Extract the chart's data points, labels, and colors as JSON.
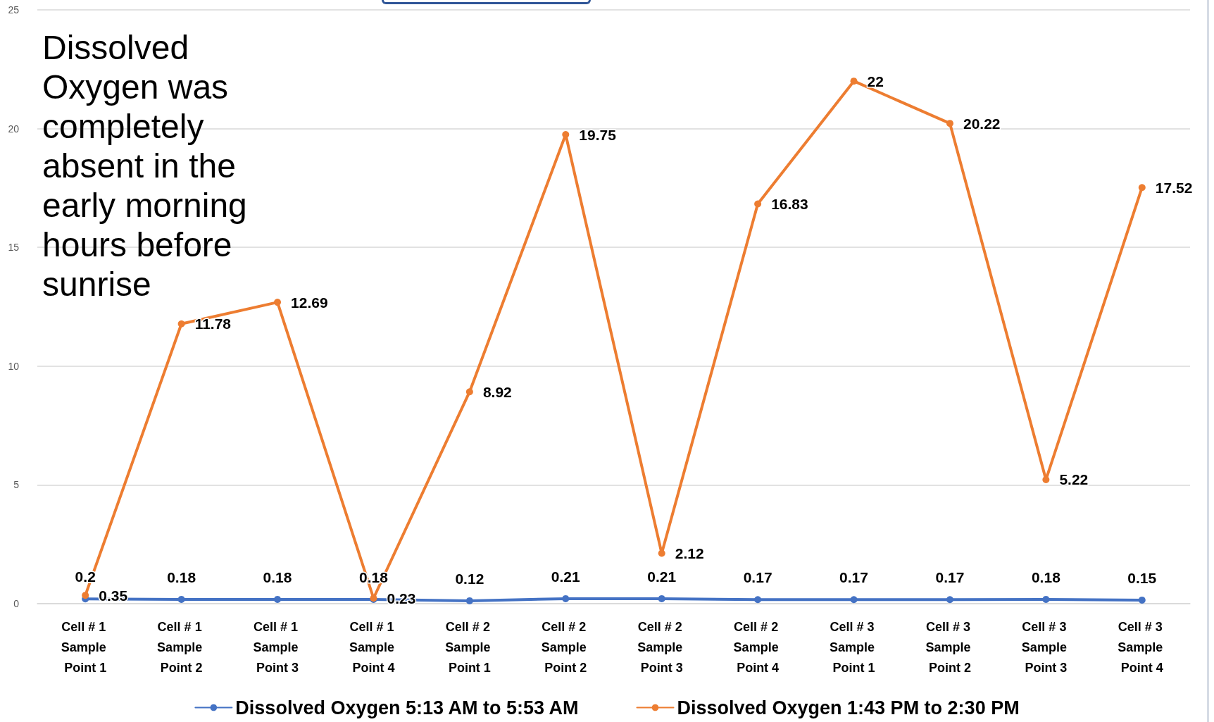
{
  "chart_data": {
    "type": "line",
    "categories": [
      "Cell # 1 Sample Point 1",
      "Cell # 1 Sample Point 2",
      "Cell # 1 Sample Point 3",
      "Cell # 1 Sample Point 4",
      "Cell # 2 Sample Point 1",
      "Cell # 2 Sample Point 2",
      "Cell # 2 Sample Point 3",
      "Cell # 2 Sample Point 4",
      "Cell # 3 Sample Point 1",
      "Cell # 3 Sample Point 2",
      "Cell # 3 Sample Point 3",
      "Cell # 3 Sample Point 4"
    ],
    "series": [
      {
        "name": "Dissolved Oxygen 5:13 AM to 5:53 AM",
        "color": "#4472c4",
        "values": [
          0.2,
          0.18,
          0.18,
          0.18,
          0.12,
          0.21,
          0.21,
          0.17,
          0.17,
          0.17,
          0.18,
          0.15
        ]
      },
      {
        "name": "Dissolved Oxygen 1:43 PM to 2:30 PM",
        "color": "#ed7d31",
        "values": [
          0.35,
          11.78,
          12.69,
          0.23,
          8.92,
          19.75,
          2.12,
          16.83,
          22,
          20.22,
          5.22,
          17.52
        ]
      }
    ],
    "ylim": [
      0,
      25
    ],
    "yticks": [
      0,
      5,
      10,
      15,
      20,
      25
    ],
    "grid": "y",
    "legend": "bottom",
    "marker": "circle",
    "line_style": "solid",
    "data_labels": true,
    "annotations": [
      "Dissolved Oxygen was completely absent in the early morning hours before sunrise"
    ]
  }
}
